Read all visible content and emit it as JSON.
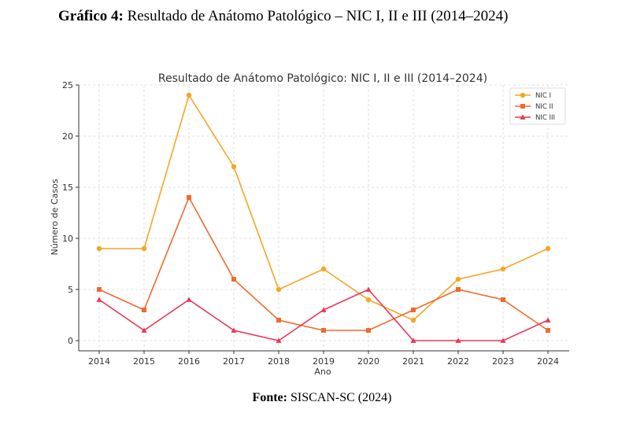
{
  "caption": {
    "prefix": "Gráfico 4:",
    "text": " Resultado de Anátomo Patológico – NIC I, II e III (2014–2024)"
  },
  "source": {
    "prefix": "Fonte:",
    "text": " SISCAN-SC (2024)"
  },
  "chart_data": {
    "type": "line",
    "title": "Resultado de Anátomo Patológico: NIC I, II e III (2014–2024)",
    "xlabel": "Ano",
    "ylabel": "Número de Casos",
    "x": [
      2014,
      2015,
      2016,
      2017,
      2018,
      2019,
      2020,
      2021,
      2022,
      2023,
      2024
    ],
    "ylim": [
      -1,
      25
    ],
    "yticks": [
      0,
      5,
      10,
      15,
      20,
      25
    ],
    "grid": true,
    "legend_position": "top-right",
    "series": [
      {
        "name": "NIC I",
        "color": "#f5a623",
        "marker": "circle",
        "values": [
          9,
          9,
          24,
          17,
          5,
          7,
          4,
          2,
          6,
          7,
          9
        ]
      },
      {
        "name": "NIC II",
        "color": "#ef6a2e",
        "marker": "square",
        "values": [
          5,
          3,
          14,
          6,
          2,
          1,
          1,
          3,
          5,
          4,
          1
        ]
      },
      {
        "name": "NIC III",
        "color": "#e8385a",
        "marker": "triangle",
        "values": [
          4,
          1,
          4,
          1,
          0,
          3,
          5,
          0,
          0,
          0,
          2
        ]
      }
    ]
  }
}
